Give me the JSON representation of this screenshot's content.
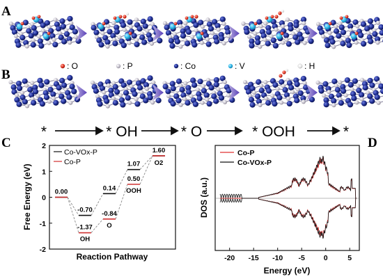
{
  "panel_labels": {
    "a": "A",
    "b": "B",
    "c": "C",
    "d": "D"
  },
  "legend_atoms": [
    {
      "symbol": ": O",
      "color": "#e03020"
    },
    {
      "symbol": ": P",
      "color": "#c8c8c8"
    },
    {
      "symbol": ": Co",
      "color": "#1a2a8c"
    },
    {
      "symbol": ": V",
      "color": "#2ab4e8"
    },
    {
      "symbol": ": H",
      "color": "#e4e4e4"
    }
  ],
  "pathway": [
    "*",
    "* OH",
    "* O",
    "* OOH",
    "*"
  ],
  "chart_data": [
    {
      "type": "line",
      "ylabel": "Free Energy (eV)",
      "xlabel": "Reaction Pathway",
      "ylim": [
        -2,
        2
      ],
      "yticks": [
        "2",
        "1",
        "0",
        "-1",
        "-2"
      ],
      "steps": [
        "*",
        "OH",
        "O",
        "OOH",
        "O2"
      ],
      "series": [
        {
          "name": "Co-VOx-P",
          "color": "#111111",
          "values": [
            0.0,
            -0.7,
            0.14,
            1.07,
            1.6
          ]
        },
        {
          "name": "Co-P",
          "color": "#d03030",
          "values": [
            0.0,
            -1.37,
            -0.84,
            0.5,
            1.6
          ]
        }
      ],
      "data_labels": {
        "Co-VOx-P": [
          "0.00",
          "-0.70",
          "0.14",
          "1.07",
          "1.60"
        ],
        "Co-P": [
          "",
          "-1.37",
          "-0.84",
          "0.50",
          ""
        ]
      },
      "species_labels": [
        "OH",
        "O",
        "OOH",
        "O2"
      ]
    },
    {
      "type": "line",
      "ylabel": "DOS (a.u.)",
      "xlabel": "Energy (eV)",
      "xlim": [
        -23,
        7
      ],
      "xticks": [
        "-20",
        "-15",
        "-10",
        "-5",
        "0",
        "5"
      ],
      "series": [
        {
          "name": "Co-P",
          "color": "#e03030"
        },
        {
          "name": "Co-VOx-P",
          "color": "#111111"
        }
      ]
    }
  ]
}
